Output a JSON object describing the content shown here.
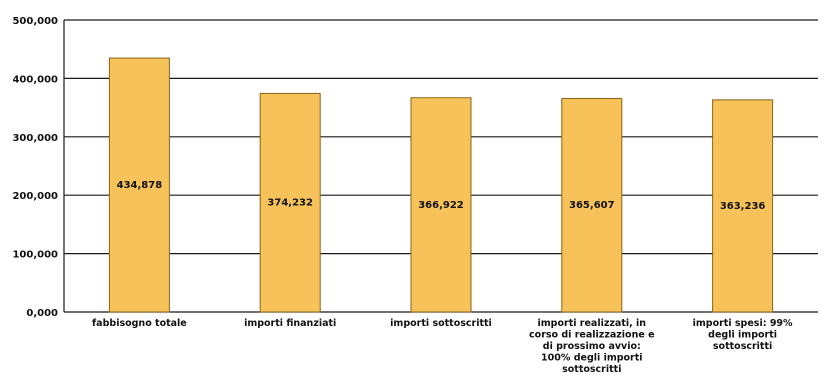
{
  "colors": {
    "bar_fill": "#F6C259",
    "bar_stroke": "#8A6418",
    "grid": "#1a1a1a",
    "text": "#111111"
  },
  "chart_data": {
    "type": "bar",
    "title": "",
    "xlabel": "",
    "ylabel": "",
    "ylim": [
      0,
      500000
    ],
    "yticks": [
      0,
      100000,
      200000,
      300000,
      400000,
      500000
    ],
    "ytick_labels": [
      "0,000",
      "100,000",
      "200,000",
      "300,000",
      "400,000",
      "500,000"
    ],
    "grid": true,
    "legend": "none",
    "categories": [
      [
        "fabbisogno totale"
      ],
      [
        "importi finanziati"
      ],
      [
        "importi sottoscritti"
      ],
      [
        "importi realizzati, in",
        "corso di realizzazione e",
        "di prossimo avvio:",
        "100% degli importi",
        "sottoscritti"
      ],
      [
        "importi spesi: 99%",
        "degli importi",
        "sottoscritti"
      ]
    ],
    "values": [
      434878,
      374232,
      366922,
      365607,
      363236
    ],
    "value_labels": [
      "434,878",
      "374,232",
      "366,922",
      "365,607",
      "363,236"
    ]
  }
}
